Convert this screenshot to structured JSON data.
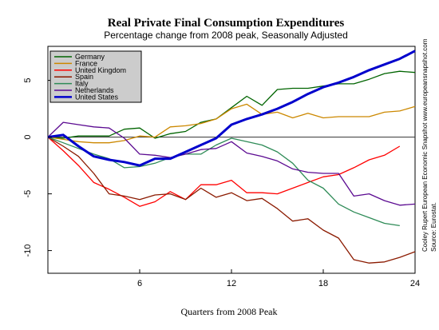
{
  "chart_data": {
    "type": "line",
    "title": "Real Private Final Consumption Expenditures",
    "subtitle": "Percentage change from 2008 peak, Seasonally Adjusted",
    "xlabel": "Quarters from 2008 Peak",
    "ylabel": "",
    "xlim": [
      0,
      24
    ],
    "ylim": [
      -12,
      8
    ],
    "xticks": [
      "6",
      "12",
      "18",
      "24"
    ],
    "yticks": [
      "5",
      "0",
      "-5",
      "-10"
    ],
    "grid": false,
    "legend_position": "top-left",
    "credit_lines": [
      "Source: Eurostat.",
      "Cooley Rupert European Economic Snapshot   www.europeansnapshot.com"
    ],
    "series": [
      {
        "name": "Germany",
        "color": "#006400",
        "x": [
          0,
          1,
          2,
          3,
          4,
          5,
          6,
          7,
          8,
          9,
          10,
          11,
          12,
          13,
          14,
          15,
          16,
          17,
          18,
          19,
          20,
          21,
          22,
          23,
          24
        ],
        "values": [
          0,
          -0.1,
          0.1,
          0.1,
          0.1,
          0.7,
          0.8,
          -0.1,
          0.3,
          0.5,
          1.3,
          1.6,
          2.6,
          3.6,
          2.8,
          4.2,
          4.3,
          4.3,
          4.5,
          4.7,
          4.7,
          5.1,
          5.6,
          5.8,
          5.7
        ]
      },
      {
        "name": "France",
        "color": "#CC8800",
        "x": [
          0,
          1,
          2,
          3,
          4,
          5,
          6,
          7,
          8,
          9,
          10,
          11,
          12,
          13,
          14,
          15,
          16,
          17,
          18,
          19,
          20,
          21,
          22,
          23,
          24
        ],
        "values": [
          0,
          -0.2,
          -0.4,
          -0.5,
          -0.5,
          -0.3,
          0.1,
          0,
          0.9,
          1.0,
          1.2,
          1.6,
          2.5,
          2.9,
          2.0,
          2.2,
          1.7,
          2.1,
          1.7,
          1.8,
          1.8,
          1.8,
          2.2,
          2.3,
          2.7
        ]
      },
      {
        "name": "United Kingdom",
        "color": "#FF0000",
        "x": [
          0,
          1,
          2,
          3,
          4,
          5,
          6,
          7,
          8,
          9,
          10,
          11,
          12,
          13,
          14,
          15,
          16,
          17,
          18,
          19,
          20,
          21,
          22,
          23
        ],
        "values": [
          0,
          -1.2,
          -2.5,
          -4.0,
          -4.6,
          -5.3,
          -6.1,
          -5.7,
          -4.8,
          -5.5,
          -4.2,
          -4.2,
          -3.8,
          -4.9,
          -4.9,
          -5.0,
          -4.5,
          -4.0,
          -3.5,
          -3.3,
          -2.7,
          -2.0,
          -1.6,
          -0.8
        ]
      },
      {
        "name": "Spain",
        "color": "#8B1A00",
        "x": [
          0,
          1,
          2,
          3,
          4,
          5,
          6,
          7,
          8,
          9,
          10,
          11,
          12,
          13,
          14,
          15,
          16,
          17,
          18,
          19,
          20,
          21,
          22,
          23,
          24
        ],
        "values": [
          0,
          -0.8,
          -1.7,
          -3.2,
          -5.0,
          -5.2,
          -5.5,
          -5.1,
          -5.0,
          -5.5,
          -4.5,
          -5.3,
          -4.9,
          -5.6,
          -5.4,
          -6.3,
          -7.4,
          -7.2,
          -8.2,
          -8.9,
          -10.8,
          -11.1,
          -11.0,
          -10.6,
          -10.1
        ]
      },
      {
        "name": "Italy",
        "color": "#2E8B57",
        "x": [
          0,
          1,
          2,
          3,
          4,
          5,
          6,
          7,
          8,
          9,
          10,
          11,
          12,
          13,
          14,
          15,
          16,
          17,
          18,
          19,
          20,
          21,
          22,
          23
        ],
        "values": [
          0,
          -0.5,
          -1.0,
          -1.5,
          -1.9,
          -2.7,
          -2.6,
          -2.3,
          -1.8,
          -1.5,
          -1.5,
          -0.7,
          -0.1,
          -0.4,
          -0.7,
          -1.3,
          -2.3,
          -3.8,
          -4.5,
          -5.9,
          -6.6,
          -7.1,
          -7.6,
          -7.8
        ]
      },
      {
        "name": "Netherlands",
        "color": "#5B0A91",
        "x": [
          0,
          1,
          2,
          3,
          4,
          5,
          6,
          7,
          8,
          9,
          10,
          11,
          12,
          13,
          14,
          15,
          16,
          17,
          18,
          19,
          20,
          21,
          22,
          23,
          24
        ],
        "values": [
          0,
          1.3,
          1.1,
          0.9,
          0.8,
          -0.1,
          -1.5,
          -1.6,
          -1.8,
          -1.5,
          -1.1,
          -1.0,
          -0.4,
          -1.4,
          -1.7,
          -2.1,
          -2.8,
          -3.1,
          -3.2,
          -3.2,
          -5.2,
          -5.0,
          -5.6,
          -6.0,
          -5.9
        ]
      },
      {
        "name": "United States",
        "color": "#0000CC",
        "x": [
          0,
          1,
          2,
          3,
          4,
          5,
          6,
          7,
          8,
          9,
          10,
          11,
          12,
          13,
          14,
          15,
          16,
          17,
          18,
          19,
          20,
          21,
          22,
          23,
          24
        ],
        "values": [
          0,
          0.2,
          -0.8,
          -1.7,
          -2.0,
          -2.2,
          -2.5,
          -1.9,
          -1.9,
          -1.3,
          -0.7,
          -0.1,
          1.1,
          1.6,
          2.0,
          2.5,
          3.1,
          3.8,
          4.4,
          4.8,
          5.3,
          5.9,
          6.4,
          6.9,
          7.6
        ]
      }
    ]
  }
}
